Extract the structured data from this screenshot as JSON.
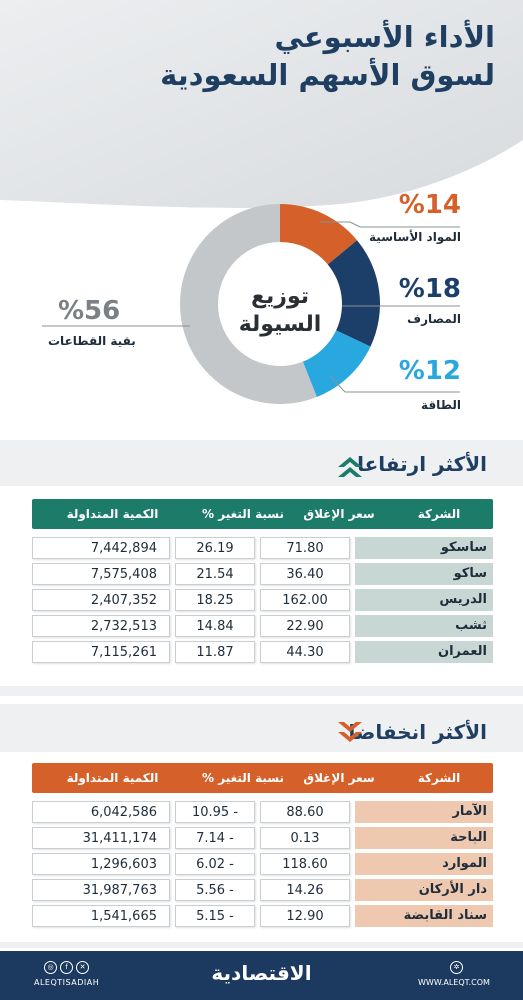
{
  "header": {
    "title_line1": "الأداء الأسبوعي",
    "title_line2": "لسوق الأسهم السعودية"
  },
  "liquidity": {
    "center_line1": "توزيع",
    "center_line2": "السيولة",
    "segments": [
      {
        "label": "المواد الأساسية",
        "percent_text": "%14",
        "value": 14,
        "color": "#d5602a"
      },
      {
        "label": "المصارف",
        "percent_text": "%18",
        "value": 18,
        "color": "#1c3f6a"
      },
      {
        "label": "الطاقة",
        "percent_text": "%12",
        "value": 12,
        "color": "#29a8df"
      },
      {
        "label": "بقية القطاعات",
        "percent_text": "%56",
        "value": 56,
        "color": "#c4c7ca"
      }
    ]
  },
  "gainers": {
    "title": "الأكثر ارتفاعا",
    "header_color": "#1d7b69",
    "name_bg": "#c8d7d4",
    "columns": [
      "الشركة",
      "سعر الإغلاق",
      "نسبة التغير %",
      "الكمية المتداولة"
    ],
    "rows": [
      {
        "name": "ساسكو",
        "close": "71.80",
        "change": "26.19",
        "volume": "7,442,894"
      },
      {
        "name": "ساكو",
        "close": "36.40",
        "change": "21.54",
        "volume": "7,575,408"
      },
      {
        "name": "الدريس",
        "close": "162.00",
        "change": "18.25",
        "volume": "2,407,352"
      },
      {
        "name": "ثشب",
        "close": "22.90",
        "change": "14.84",
        "volume": "2,732,513"
      },
      {
        "name": "العمران",
        "close": "44.30",
        "change": "11.87",
        "volume": "7,115,261"
      }
    ]
  },
  "losers": {
    "title": "الأكثر انخفاضا",
    "header_color": "#d5602a",
    "name_bg": "#efc8b0",
    "columns": [
      "الشركة",
      "سعر الإغلاق",
      "نسبة التغير %",
      "الكمية المتداولة"
    ],
    "rows": [
      {
        "name": "الآمار",
        "close": "88.60",
        "change": "10.95 -",
        "volume": "6,042,586"
      },
      {
        "name": "الباحة",
        "close": "0.13",
        "change": "7.14 -",
        "volume": "31,411,174"
      },
      {
        "name": "الموارد",
        "close": "118.60",
        "change": "6.02 -",
        "volume": "1,296,603"
      },
      {
        "name": "دار الأركان",
        "close": "14.26",
        "change": "5.56 -",
        "volume": "31,987,763"
      },
      {
        "name": "سناد القابضة",
        "close": "12.90",
        "change": "5.15 -",
        "volume": "1,541,665"
      }
    ]
  },
  "footer": {
    "brand": "الاقتصادية",
    "handle": "ALEQTISADIAH",
    "website": "WWW.ALEQT.COM"
  }
}
